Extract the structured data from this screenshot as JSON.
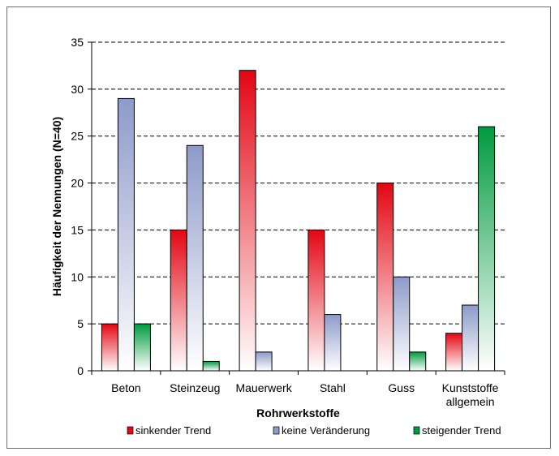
{
  "chart_data": {
    "type": "bar",
    "title": "",
    "xlabel": "Rohrwerkstoffe",
    "ylabel": "Häufigkeit der Nennungen (N=40)",
    "ylim": [
      0,
      35
    ],
    "yticks": [
      0,
      5,
      10,
      15,
      20,
      25,
      30,
      35
    ],
    "grid": true,
    "legend_position": "bottom",
    "categories": [
      [
        "Beton"
      ],
      [
        "Steinzeug"
      ],
      [
        "Mauerwerk"
      ],
      [
        "Stahl"
      ],
      [
        "Guss"
      ],
      [
        "Kunststoffe",
        "allgemein"
      ]
    ],
    "series": [
      {
        "name": "sinkender Trend",
        "values": [
          5,
          15,
          32,
          15,
          20,
          4
        ],
        "color_top": "#e30613",
        "color_bottom": "#ffffff",
        "labels": [
          "5",
          "15",
          "32",
          "15",
          "20",
          "4"
        ]
      },
      {
        "name": "keine Veränderung",
        "values": [
          29,
          24,
          2,
          6,
          10,
          7
        ],
        "color_top": "#8e9ac9",
        "color_bottom": "#ffffff",
        "labels": [
          "29",
          "24",
          "2",
          "6",
          "10",
          "7"
        ]
      },
      {
        "name": "steigender Trend",
        "values": [
          5,
          1,
          0,
          0,
          2,
          26
        ],
        "color_top": "#009a3e",
        "color_bottom": "#ffffff",
        "labels": [
          "5",
          "1",
          "",
          "",
          "2",
          "26"
        ]
      }
    ]
  }
}
